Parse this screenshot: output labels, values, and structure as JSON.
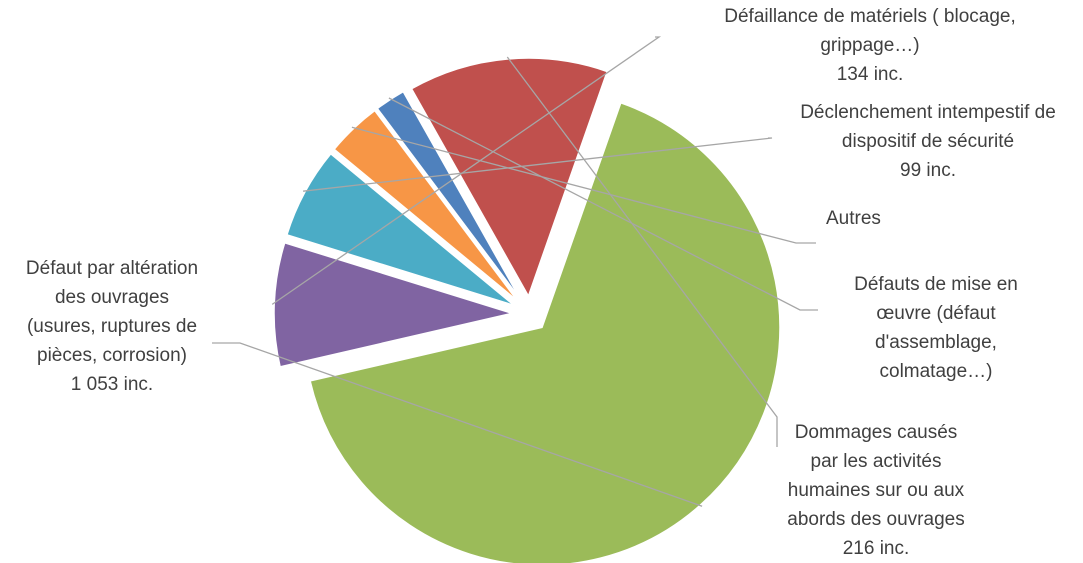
{
  "chart_data": {
    "type": "pie",
    "title": "",
    "colors": {
      "degradation": "#9BBB59",
      "equipment": "#8064A2",
      "safety_trip": "#4BACC6",
      "other": "#F79646",
      "installation": "#4F81BD",
      "human_damage": "#C0504D"
    },
    "slices": [
      {
        "key": "equipment",
        "value": 134,
        "label_lines": [
          "Défaillance de matériels ( blocage,",
          "grippage…)",
          "134 inc."
        ]
      },
      {
        "key": "safety_trip",
        "value": 99,
        "label_lines": [
          "Déclenchement intempestif de",
          "dispositif de sécurité",
          "99 inc."
        ]
      },
      {
        "key": "other",
        "value": 60,
        "label_lines": [
          "Autres"
        ]
      },
      {
        "key": "installation",
        "value": 33,
        "label_lines": [
          "Défauts de mise en",
          "œuvre (défaut",
          "d'assemblage,",
          "colmatage…)"
        ]
      },
      {
        "key": "human_damage",
        "value": 216,
        "label_lines": [
          "Dommages causés",
          "par les activités",
          "humaines sur ou aux",
          "abords des ouvrages",
          "216 inc."
        ]
      },
      {
        "key": "degradation",
        "value": 1053,
        "label_lines": [
          "Défaut par altération",
          "des ouvrages",
          "(usures, ruptures de",
          "pièces, corrosion)",
          "1 053 inc."
        ]
      }
    ]
  }
}
